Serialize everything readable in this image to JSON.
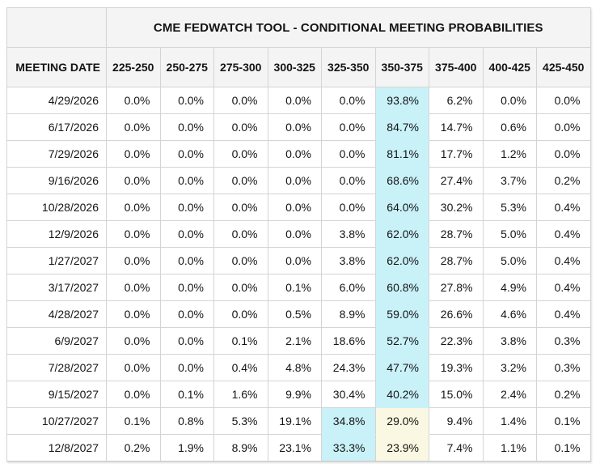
{
  "title": "CME FEDWATCH TOOL - CONDITIONAL MEETING PROBABILITIES",
  "header": {
    "date_label": "MEETING DATE",
    "rates": [
      "225-250",
      "250-275",
      "275-300",
      "300-325",
      "325-350",
      "350-375",
      "375-400",
      "400-425",
      "425-450"
    ]
  },
  "rows": [
    {
      "date": "4/29/2026",
      "values": [
        "0.0%",
        "0.0%",
        "0.0%",
        "0.0%",
        "0.0%",
        "93.8%",
        "6.2%",
        "0.0%",
        "0.0%"
      ],
      "highlight": {
        "cyan": 5
      }
    },
    {
      "date": "6/17/2026",
      "values": [
        "0.0%",
        "0.0%",
        "0.0%",
        "0.0%",
        "0.0%",
        "84.7%",
        "14.7%",
        "0.6%",
        "0.0%"
      ],
      "highlight": {
        "cyan": 5
      }
    },
    {
      "date": "7/29/2026",
      "values": [
        "0.0%",
        "0.0%",
        "0.0%",
        "0.0%",
        "0.0%",
        "81.1%",
        "17.7%",
        "1.2%",
        "0.0%"
      ],
      "highlight": {
        "cyan": 5
      }
    },
    {
      "date": "9/16/2026",
      "values": [
        "0.0%",
        "0.0%",
        "0.0%",
        "0.0%",
        "0.0%",
        "68.6%",
        "27.4%",
        "3.7%",
        "0.2%"
      ],
      "highlight": {
        "cyan": 5
      }
    },
    {
      "date": "10/28/2026",
      "values": [
        "0.0%",
        "0.0%",
        "0.0%",
        "0.0%",
        "0.0%",
        "64.0%",
        "30.2%",
        "5.3%",
        "0.4%"
      ],
      "highlight": {
        "cyan": 5
      }
    },
    {
      "date": "12/9/2026",
      "values": [
        "0.0%",
        "0.0%",
        "0.0%",
        "0.0%",
        "3.8%",
        "62.0%",
        "28.7%",
        "5.0%",
        "0.4%"
      ],
      "highlight": {
        "cyan": 5
      }
    },
    {
      "date": "1/27/2027",
      "values": [
        "0.0%",
        "0.0%",
        "0.0%",
        "0.0%",
        "3.8%",
        "62.0%",
        "28.7%",
        "5.0%",
        "0.4%"
      ],
      "highlight": {
        "cyan": 5
      }
    },
    {
      "date": "3/17/2027",
      "values": [
        "0.0%",
        "0.0%",
        "0.0%",
        "0.1%",
        "6.0%",
        "60.8%",
        "27.8%",
        "4.9%",
        "0.4%"
      ],
      "highlight": {
        "cyan": 5
      }
    },
    {
      "date": "4/28/2027",
      "values": [
        "0.0%",
        "0.0%",
        "0.0%",
        "0.5%",
        "8.9%",
        "59.0%",
        "26.6%",
        "4.6%",
        "0.4%"
      ],
      "highlight": {
        "cyan": 5
      }
    },
    {
      "date": "6/9/2027",
      "values": [
        "0.0%",
        "0.0%",
        "0.1%",
        "2.1%",
        "18.6%",
        "52.7%",
        "22.3%",
        "3.8%",
        "0.3%"
      ],
      "highlight": {
        "cyan": 5
      }
    },
    {
      "date": "7/28/2027",
      "values": [
        "0.0%",
        "0.0%",
        "0.4%",
        "4.8%",
        "24.3%",
        "47.7%",
        "19.3%",
        "3.2%",
        "0.3%"
      ],
      "highlight": {
        "cyan": 5
      }
    },
    {
      "date": "9/15/2027",
      "values": [
        "0.0%",
        "0.1%",
        "1.6%",
        "9.9%",
        "30.4%",
        "40.2%",
        "15.0%",
        "2.4%",
        "0.2%"
      ],
      "highlight": {
        "cyan": 5
      }
    },
    {
      "date": "10/27/2027",
      "values": [
        "0.1%",
        "0.8%",
        "5.3%",
        "19.1%",
        "34.8%",
        "29.0%",
        "9.4%",
        "1.4%",
        "0.1%"
      ],
      "highlight": {
        "cyan": 4,
        "yellow": 5
      }
    },
    {
      "date": "12/8/2027",
      "values": [
        "0.2%",
        "1.9%",
        "8.9%",
        "23.1%",
        "33.3%",
        "23.9%",
        "7.4%",
        "1.1%",
        "0.1%"
      ],
      "highlight": {
        "cyan": 4,
        "yellow": 5
      }
    }
  ],
  "colors": {
    "highlight_cyan": "#c9f1f8",
    "highlight_yellow": "#faf8e2",
    "header_bg": "#f4f4f4",
    "grid_border": "#d4d4d4",
    "outer_border": "#c6c6c6",
    "text": "#141414"
  }
}
